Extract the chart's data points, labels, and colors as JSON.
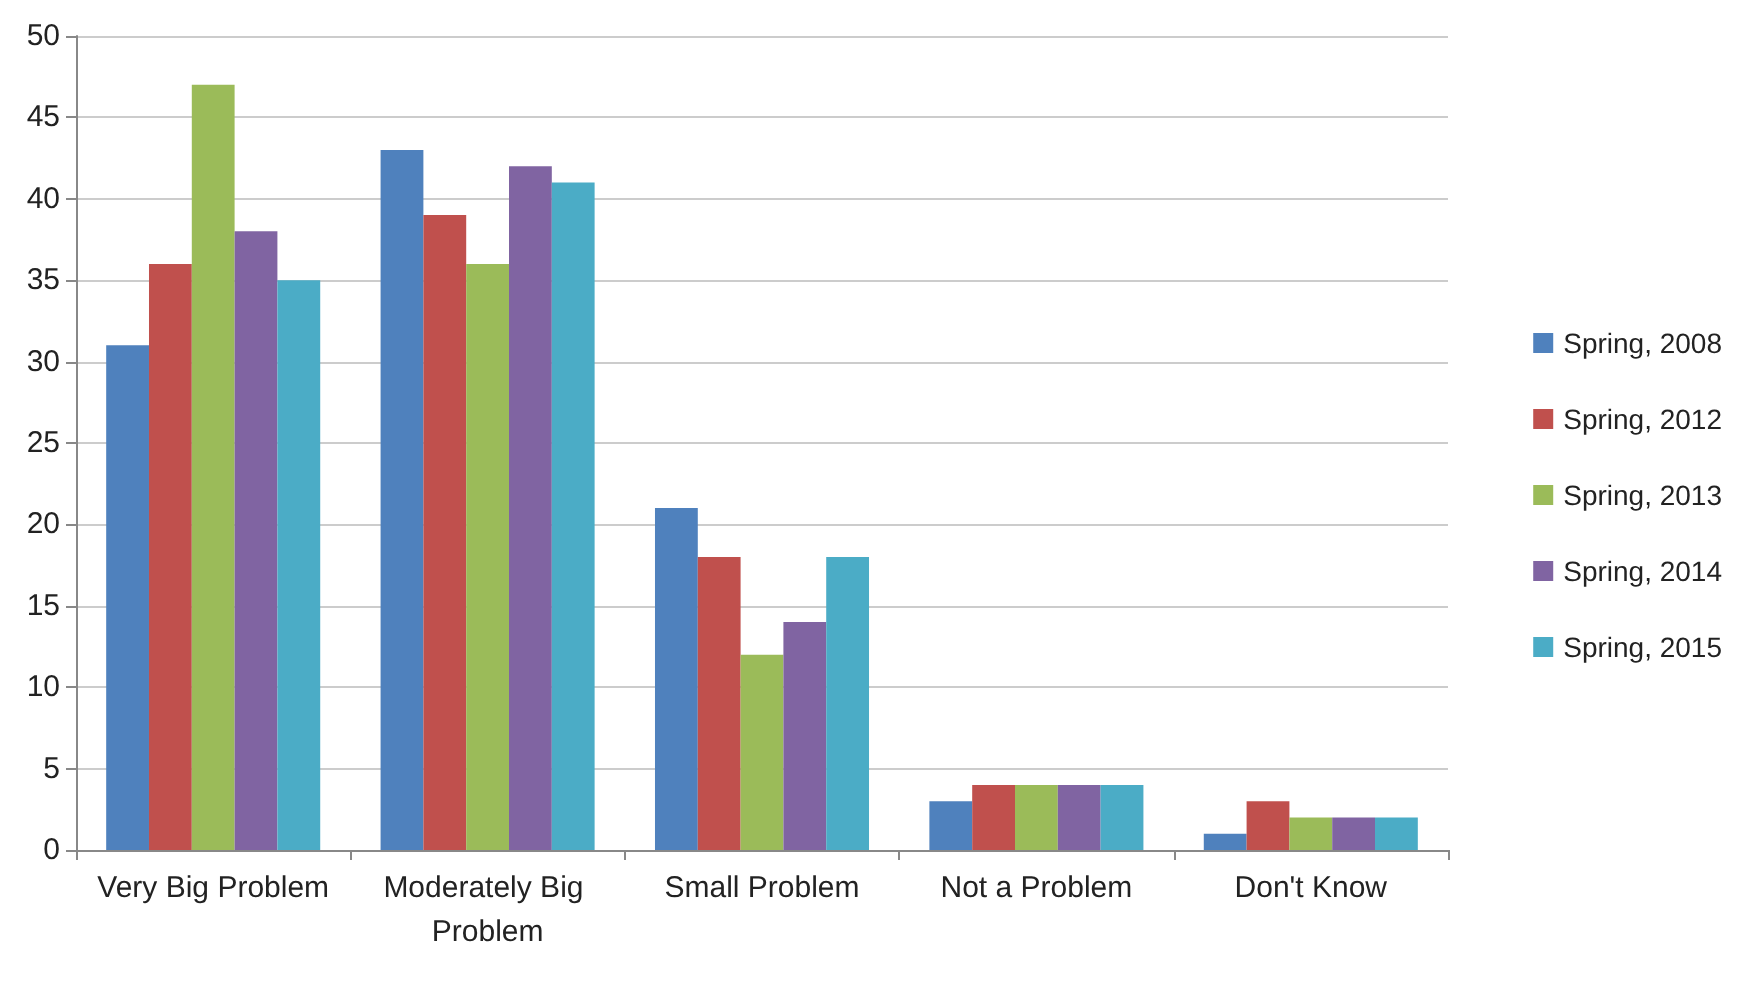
{
  "chart_data": {
    "type": "bar",
    "categories": [
      "Very Big Problem",
      "Moderately Big Problem",
      "Small Problem",
      "Not a Problem",
      "Don't Know"
    ],
    "series": [
      {
        "name": "Spring, 2008",
        "color": "#4f81bd",
        "values": [
          31,
          43,
          21,
          3,
          1
        ]
      },
      {
        "name": "Spring, 2012",
        "color": "#c0504d",
        "values": [
          36,
          39,
          18,
          4,
          3
        ]
      },
      {
        "name": "Spring, 2013",
        "color": "#9bbb59",
        "values": [
          47,
          36,
          12,
          4,
          2
        ]
      },
      {
        "name": "Spring, 2014",
        "color": "#8064a2",
        "values": [
          38,
          42,
          14,
          4,
          2
        ]
      },
      {
        "name": "Spring, 2015",
        "color": "#4bacc6",
        "values": [
          35,
          41,
          18,
          4,
          2
        ]
      }
    ],
    "ylim": [
      0,
      50
    ],
    "yticks": [
      0,
      5,
      10,
      15,
      20,
      25,
      30,
      35,
      40,
      45,
      50
    ],
    "grid": "y",
    "legend": "right"
  }
}
